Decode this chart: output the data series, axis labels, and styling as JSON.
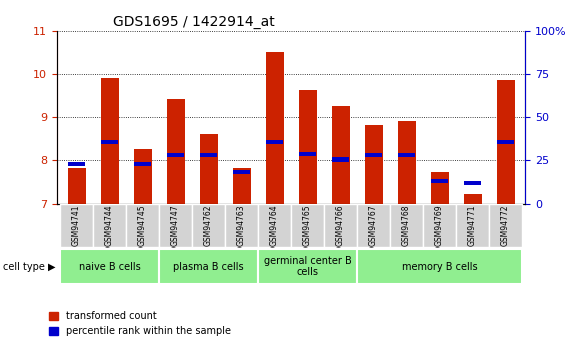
{
  "title": "GDS1695 / 1422914_at",
  "samples": [
    "GSM94741",
    "GSM94744",
    "GSM94745",
    "GSM94747",
    "GSM94762",
    "GSM94763",
    "GSM94764",
    "GSM94765",
    "GSM94766",
    "GSM94767",
    "GSM94768",
    "GSM94769",
    "GSM94771",
    "GSM94772"
  ],
  "transformed_count": [
    7.82,
    9.91,
    8.27,
    9.43,
    8.62,
    7.82,
    10.52,
    9.63,
    9.27,
    8.82,
    8.92,
    7.73,
    7.22,
    9.87
  ],
  "percentile_rank_val": [
    7.92,
    8.42,
    7.92,
    8.12,
    8.12,
    7.73,
    8.43,
    8.15,
    8.02,
    8.12,
    8.12,
    7.52,
    7.47,
    8.43
  ],
  "ylim_left": [
    7,
    11
  ],
  "ylim_right": [
    0,
    100
  ],
  "yticks_left": [
    7,
    8,
    9,
    10,
    11
  ],
  "yticks_right": [
    0,
    25,
    50,
    75,
    100
  ],
  "bar_bottom": 7.0,
  "cell_groups": [
    {
      "label": "naive B cells",
      "start": 0,
      "end": 3,
      "color": "#90ee90"
    },
    {
      "label": "plasma B cells",
      "start": 3,
      "end": 6,
      "color": "#90ee90"
    },
    {
      "label": "germinal center B\ncells",
      "start": 6,
      "end": 9,
      "color": "#90ee90"
    },
    {
      "label": "memory B cells",
      "start": 9,
      "end": 14,
      "color": "#90ee90"
    }
  ],
  "bar_color_red": "#cc2200",
  "bar_color_blue": "#0000cc",
  "tick_label_color_left": "#cc2200",
  "tick_label_color_right": "#0000cc",
  "bar_width": 0.55,
  "cell_type_label": "cell type",
  "legend_red": "transformed count",
  "legend_blue": "percentile rank within the sample",
  "bg_color": "#ffffff",
  "plot_bg_color": "#ffffff",
  "grid_color": "#000000",
  "sample_box_color": "#d3d3d3"
}
